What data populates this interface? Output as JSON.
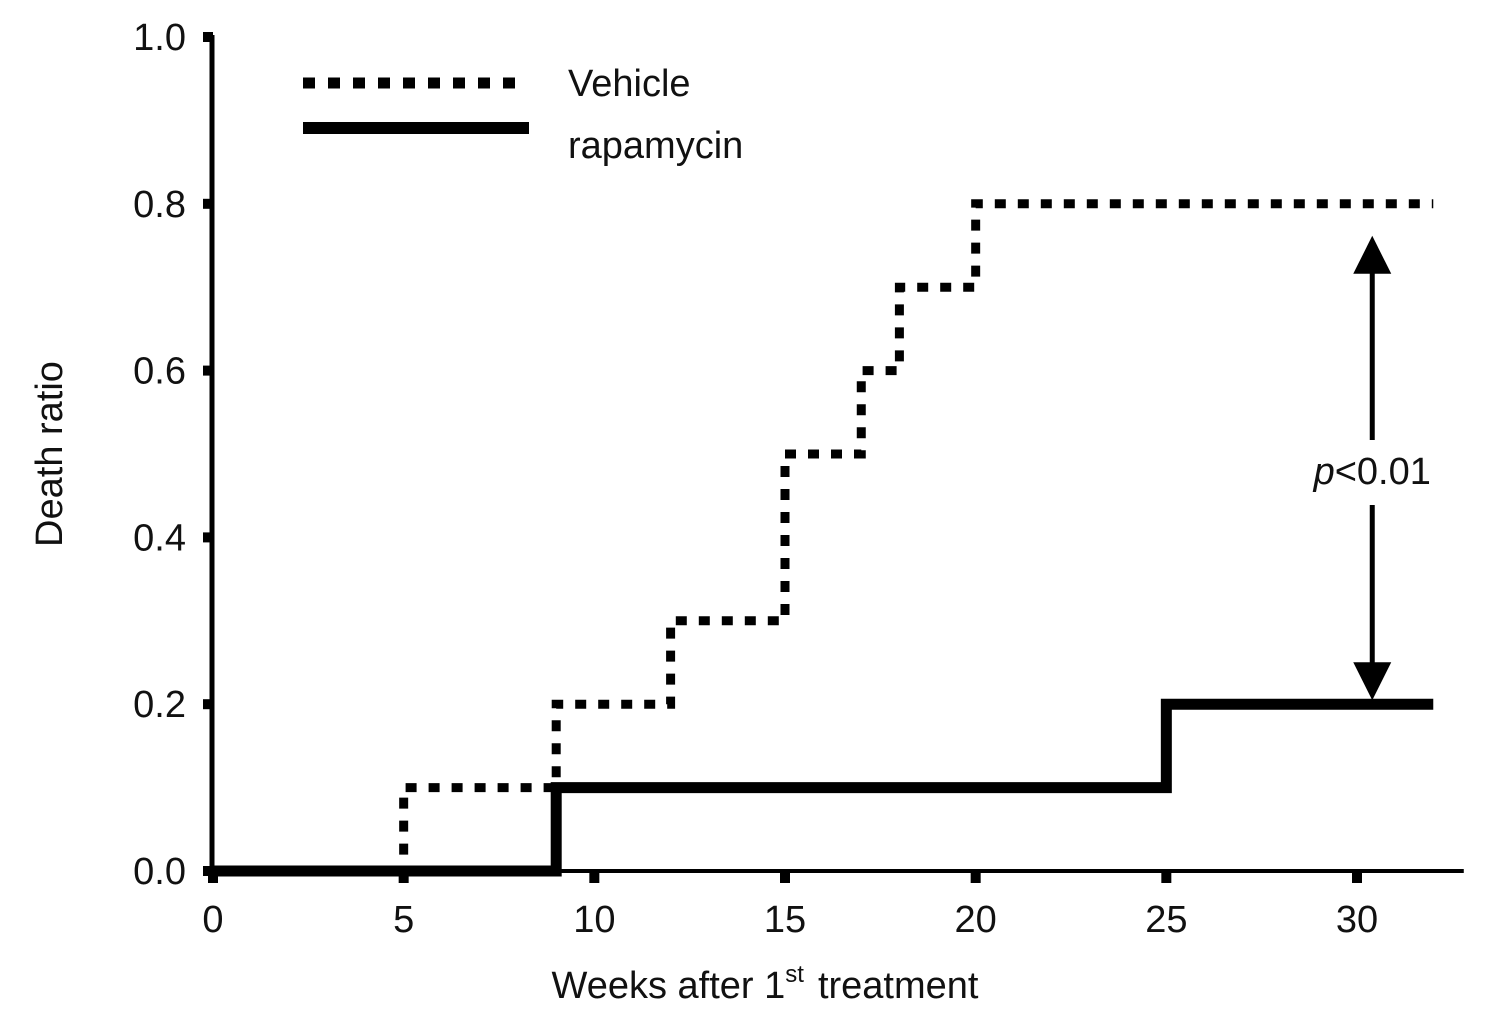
{
  "chart_data": {
    "type": "line",
    "step": true,
    "title": "",
    "xlabel": "Weeks after 1",
    "xlabel_superscript": "st",
    "xlabel_suffix": "treatment",
    "ylabel": "Death ratio",
    "xlim": [
      0,
      32.8
    ],
    "ylim": [
      0,
      1.0
    ],
    "xticks": [
      0,
      5,
      10,
      15,
      20,
      25,
      30
    ],
    "yticks": [
      "0.0",
      "0.2",
      "0.4",
      "0.6",
      "0.8",
      "1.0"
    ],
    "grid": false,
    "legend_position": "top-left",
    "series": [
      {
        "name": "Vehicle",
        "style": "dotted",
        "color": "#000000",
        "points": [
          [
            0,
            0
          ],
          [
            5,
            0.1
          ],
          [
            9,
            0.2
          ],
          [
            12,
            0.3
          ],
          [
            15,
            0.5
          ],
          [
            17,
            0.6
          ],
          [
            18,
            0.7
          ],
          [
            20,
            0.8
          ],
          [
            32,
            0.8
          ]
        ]
      },
      {
        "name": "rapamycin",
        "style": "solid",
        "color": "#000000",
        "points": [
          [
            0,
            0
          ],
          [
            9,
            0.1
          ],
          [
            25,
            0.2
          ],
          [
            32,
            0.2
          ]
        ]
      }
    ],
    "annotation": {
      "x": 30.4,
      "from": 0.8,
      "to": 0.2,
      "label_italic": "p",
      "label_rest": "<0.01"
    }
  }
}
